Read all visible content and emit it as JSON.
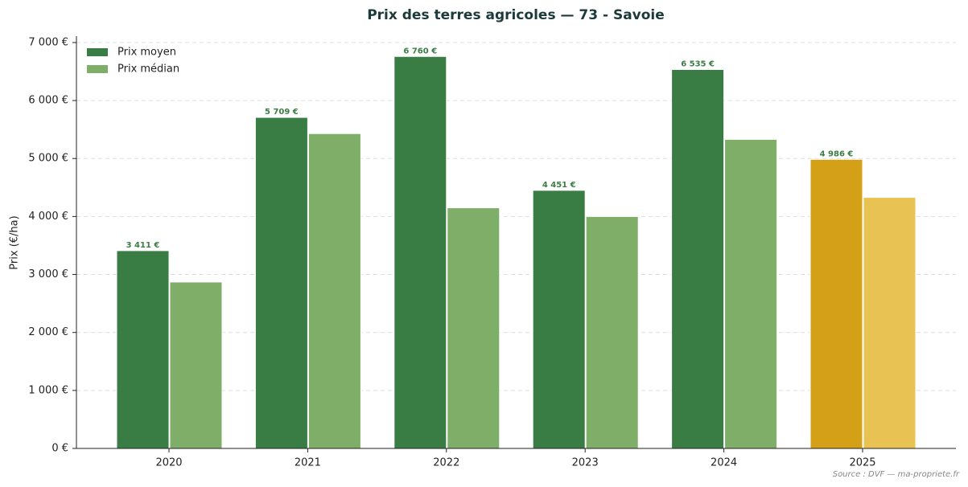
{
  "chart_data": {
    "type": "bar",
    "title": "Prix des terres agricoles — 73 - Savoie",
    "y_label": "Prix (€/ha)",
    "source": "Source : DVF — ma-propriete.fr",
    "categories": [
      "2020",
      "2021",
      "2022",
      "2023",
      "2024",
      "2025"
    ],
    "series": [
      {
        "name": "Prix moyen",
        "color": "#3a7d44",
        "colors": [
          "#3a7d44",
          "#3a7d44",
          "#3a7d44",
          "#3a7d44",
          "#3a7d44",
          "#d4a017"
        ],
        "values": [
          3411,
          5709,
          6760,
          4451,
          6535,
          4986
        ],
        "value_labels": [
          "3 411 €",
          "5 709 €",
          "6 760 €",
          "4 451 €",
          "6 535 €",
          "4 986 €"
        ]
      },
      {
        "name": "Prix médian",
        "color": "#7fae69",
        "colors": [
          "#7fae69",
          "#7fae69",
          "#7fae69",
          "#7fae69",
          "#7fae69",
          "#e8c252"
        ],
        "values": [
          2870,
          5430,
          4150,
          4000,
          5330,
          4330
        ]
      }
    ],
    "ylim": [
      0,
      7110
    ],
    "yticks": [
      {
        "value": 0,
        "label": "0 €"
      },
      {
        "value": 1000,
        "label": "1 000 €"
      },
      {
        "value": 2000,
        "label": "2 000 €"
      },
      {
        "value": 3000,
        "label": "3 000 €"
      },
      {
        "value": 4000,
        "label": "4 000 €"
      },
      {
        "value": 5000,
        "label": "5 000 €"
      },
      {
        "value": 6000,
        "label": "6 000 €"
      },
      {
        "value": 7000,
        "label": "7 000 €"
      }
    ],
    "grid": true,
    "legend": "upper left"
  }
}
